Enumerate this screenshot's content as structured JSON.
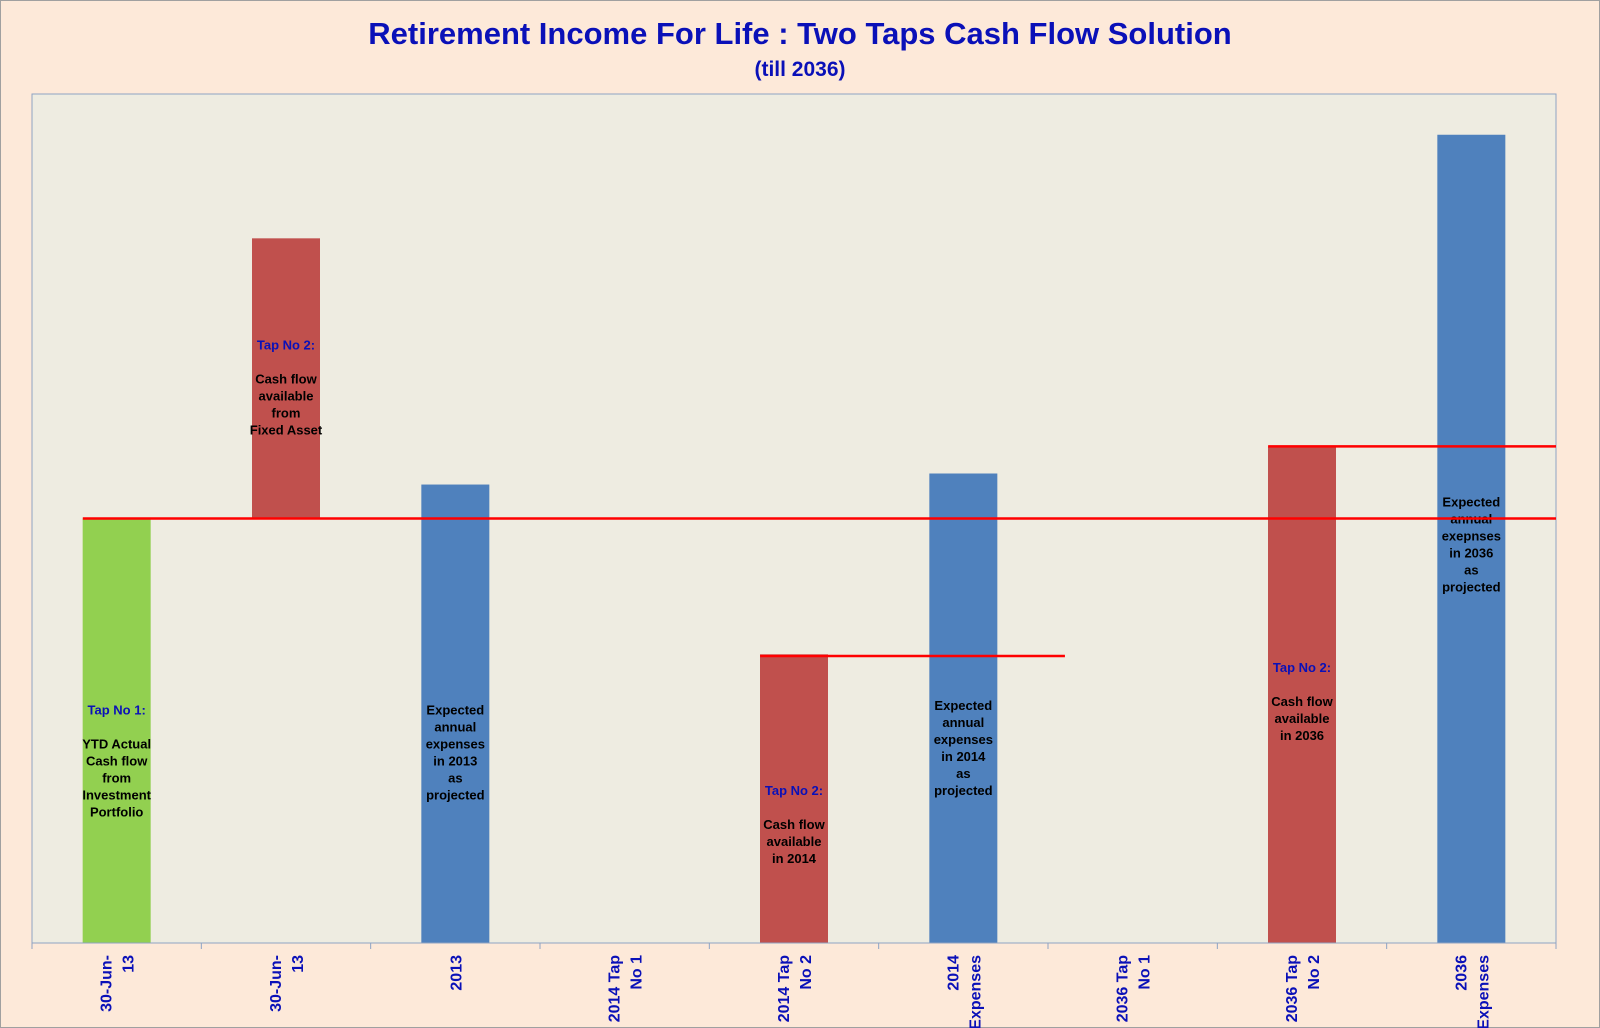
{
  "chart_data": {
    "type": "bar",
    "title": "Retirement Income For Life : Two Taps Cash Flow Solution",
    "subtitle": "(till 2036)",
    "xlabel": "",
    "ylabel": "",
    "ylim": [
      0,
      1
    ],
    "grid": false,
    "legend": "none",
    "categories": [
      [
        "30-Jun-",
        "13"
      ],
      [
        "30-Jun-",
        "13"
      ],
      [
        "2013"
      ],
      [
        "2014 Tap",
        "No 1"
      ],
      [
        "2014 Tap",
        "No 2"
      ],
      [
        "2014",
        "Expenses"
      ],
      [
        "2036 Tap",
        "No 1"
      ],
      [
        "2036 Tap",
        "No 2"
      ],
      [
        "2036",
        "Expenses"
      ]
    ],
    "bars": [
      {
        "base": 0,
        "value": 0.5,
        "color": "#92d050",
        "heading": "Tap No 1:",
        "lines": [
          "YTD Actual",
          "Cash flow",
          "from",
          "Investment",
          "Portfolio"
        ],
        "label_pos": 0.215
      },
      {
        "base": 0.5,
        "value": 0.33,
        "color": "#c0504d",
        "heading": "Tap No 2:",
        "lines": [
          "Cash flow",
          "available",
          "from",
          "Fixed Asset"
        ],
        "label_pos": 0.655
      },
      {
        "base": 0,
        "value": 0.54,
        "color": "#4f81bd",
        "heading": "",
        "lines": [
          "Expected",
          "annual",
          "expenses",
          "in 2013",
          "as",
          "projected"
        ],
        "label_pos": 0.225
      },
      {
        "base": 0,
        "value": 0,
        "color": "#4f81bd",
        "heading": "",
        "lines": [],
        "label_pos": 0
      },
      {
        "base": 0,
        "value": 0.34,
        "color": "#c0504d",
        "heading": "Tap No 2:",
        "lines": [
          "Cash flow",
          "available",
          "in 2014"
        ],
        "label_pos": 0.14
      },
      {
        "base": 0,
        "value": 0.553,
        "color": "#4f81bd",
        "heading": "",
        "lines": [
          "Expected",
          "annual",
          "expenses",
          "in 2014",
          "as",
          "projected"
        ],
        "label_pos": 0.23
      },
      {
        "base": 0,
        "value": 0,
        "color": "#4f81bd",
        "heading": "",
        "lines": [],
        "label_pos": 0
      },
      {
        "base": 0,
        "value": 0.585,
        "color": "#c0504d",
        "heading": "Tap No 2:",
        "lines": [
          "Cash flow",
          "available",
          "in 2036"
        ],
        "label_pos": 0.285
      },
      {
        "base": 0,
        "value": 0.952,
        "color": "#4f81bd",
        "heading": "",
        "lines": [
          "Expected",
          "annual",
          "exepnses",
          "in 2036",
          "as",
          "projected"
        ],
        "label_pos": 0.47
      }
    ],
    "reference_lines": [
      {
        "value": 0.5,
        "from": 0.3,
        "to": 9.0,
        "color": "#ff0000"
      },
      {
        "value": 0.338,
        "from": 4.3,
        "to": 6.1,
        "color": "#ff0000"
      },
      {
        "value": 0.585,
        "from": 7.3,
        "to": 9.0,
        "color": "#ff0000"
      }
    ],
    "colors": {
      "page_bg": "#fde9d9",
      "plot_bg": "#eeece1",
      "title": "#0a10b8",
      "heading_text": "#0a10b8",
      "body_text": "#000000"
    }
  }
}
